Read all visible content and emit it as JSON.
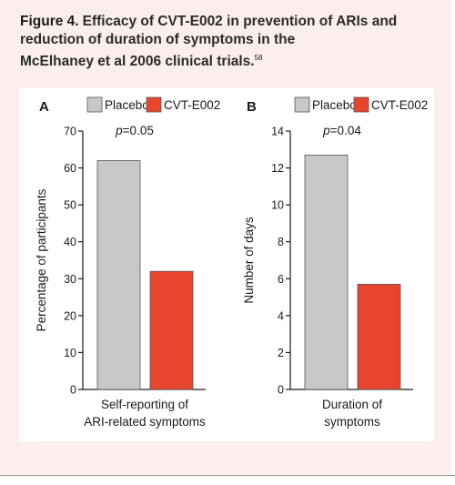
{
  "figure": {
    "label": "Figure 4.",
    "caption_line1": "Efficacy of CVT-E002 in prevention of ARIs and",
    "caption_line2": "reduction of duration of symptoms in the",
    "caption_line3": "McElhaney et al 2006 clinical trials.",
    "reference": "58"
  },
  "colors": {
    "placebo": "#c8c8c8",
    "treatment": "#e8452f",
    "background": "#fbeeec"
  },
  "chart_data": [
    {
      "type": "bar",
      "panel_letter": "A",
      "categories": [
        "Placebo",
        "CVT-E002"
      ],
      "values": [
        62,
        32
      ],
      "legend": [
        "Placebo",
        "CVT-E002"
      ],
      "ylabel": "Percentage of participants",
      "xlabel_line1": "Self-reporting of",
      "xlabel_line2": "ARI-related symptoms",
      "ylim": [
        0,
        70
      ],
      "yticks": [
        0,
        10,
        20,
        30,
        40,
        50,
        60,
        70
      ],
      "p_label": "p",
      "p_value": "=0.05",
      "grid": false,
      "legend_position": "top"
    },
    {
      "type": "bar",
      "panel_letter": "B",
      "categories": [
        "Placebo",
        "CVT-E002"
      ],
      "values": [
        12.7,
        5.7
      ],
      "legend": [
        "Placebo",
        "CVT-E002"
      ],
      "ylabel": "Number of days",
      "xlabel_line1": "Duration of",
      "xlabel_line2": "symptoms",
      "ylim": [
        0,
        14
      ],
      "yticks": [
        0,
        2,
        4,
        6,
        8,
        10,
        12,
        14
      ],
      "p_label": "p",
      "p_value": "=0.04",
      "grid": false,
      "legend_position": "top"
    }
  ]
}
